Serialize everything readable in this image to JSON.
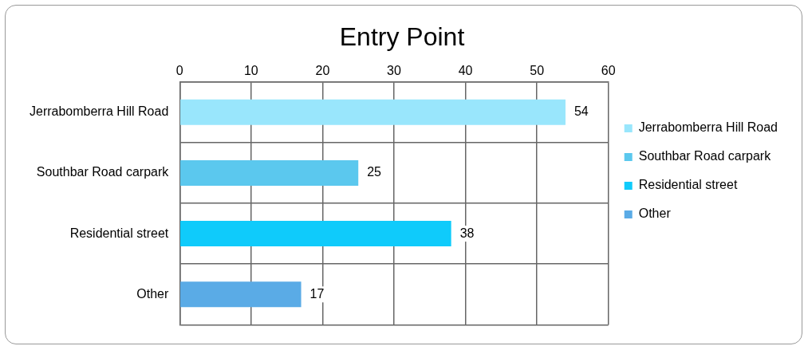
{
  "chart_data": {
    "type": "bar",
    "orientation": "horizontal",
    "title": "Entry Point",
    "categories": [
      "Jerrabomberra Hill Road",
      "Southbar Road carpark",
      "Residential street",
      "Other"
    ],
    "series": [
      {
        "name": "Jerrabomberra Hill Road",
        "color": "#99e6fc",
        "values": [
          54,
          null,
          null,
          null
        ]
      },
      {
        "name": "Southbar Road carpark",
        "color": "#5bc8ee",
        "values": [
          null,
          25,
          null,
          null
        ]
      },
      {
        "name": "Residential street",
        "color": "#0fcbfb",
        "values": [
          null,
          null,
          38,
          null
        ]
      },
      {
        "name": "Other",
        "color": "#5aabe6",
        "values": [
          null,
          null,
          null,
          17
        ]
      }
    ],
    "xlim": [
      0,
      60
    ],
    "xticks": [
      0,
      10,
      20,
      30,
      40,
      50,
      60
    ],
    "grid": true,
    "legend": "right",
    "data_labels": true
  }
}
